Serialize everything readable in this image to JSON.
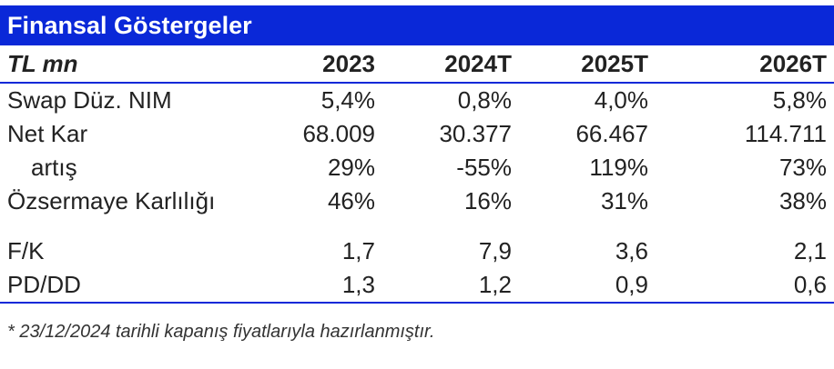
{
  "title": "Finansal Göstergeler",
  "header": {
    "label": "TL mn",
    "years": [
      "2023",
      "2024T",
      "2025T",
      "2026T"
    ]
  },
  "rows": {
    "swap_nim": {
      "label": "Swap Düz. NIM",
      "values": [
        "5,4%",
        "0,8%",
        "4,0%",
        "5,8%"
      ]
    },
    "net_kar": {
      "label": "Net Kar",
      "values": [
        "68.009",
        "30.377",
        "66.467",
        "114.711"
      ]
    },
    "artis": {
      "label": "artış",
      "values": [
        "29%",
        "-55%",
        "119%",
        "73%"
      ]
    },
    "ozsermaye": {
      "label": "Özsermaye Karlılığı",
      "values": [
        "46%",
        "16%",
        "31%",
        "38%"
      ]
    },
    "fk": {
      "label": "F/K",
      "values": [
        "1,7",
        "7,9",
        "3,6",
        "2,1"
      ]
    },
    "pddd": {
      "label": "PD/DD",
      "values": [
        "1,3",
        "1,2",
        "0,9",
        "0,6"
      ]
    }
  },
  "footnote": "* 23/12/2024 tarihli kapanış fiyatlarıyla hazırlanmıştır.",
  "colors": {
    "accent": "#0a28d8",
    "header_text": "#ffffff",
    "body_text": "#222222"
  }
}
